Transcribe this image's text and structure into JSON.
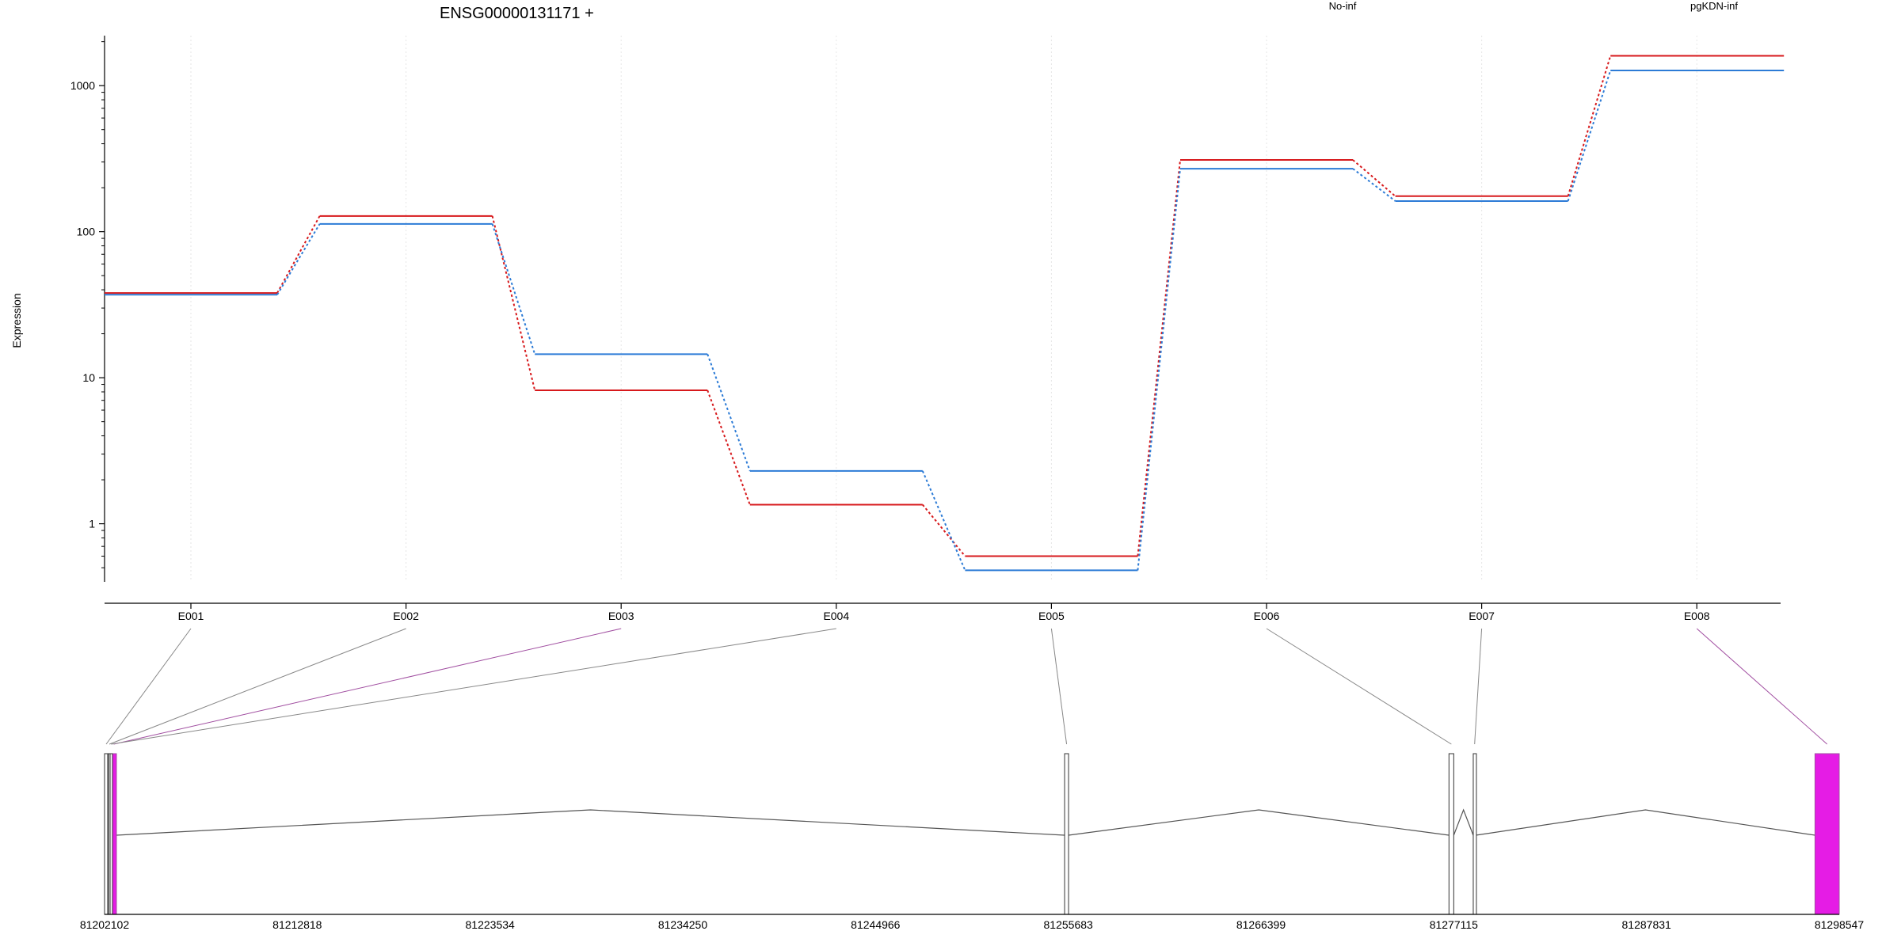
{
  "colors": {
    "series_no_inf": "#d7191c",
    "series_pgkdn_inf": "#2c7bd6",
    "highlight_exon": "#e51ce5",
    "highlight_line": "#a14fa1",
    "axis": "#000000",
    "grid": "#e6e6e6",
    "gene_line": "#555555",
    "connector": "#888888"
  },
  "chart_data": [
    {
      "type": "line",
      "title": "ENSG00000131171 +",
      "ylabel": "Expression",
      "xlabel": "",
      "y_scale": "log",
      "ylim": [
        0.4,
        2200
      ],
      "y_ticks": [
        {
          "value": 1,
          "label": "1"
        },
        {
          "value": 10,
          "label": "10"
        },
        {
          "value": 100,
          "label": "100"
        },
        {
          "value": 1000,
          "label": "1000"
        }
      ],
      "categories": [
        "E001",
        "E002",
        "E003",
        "E004",
        "E005",
        "E006",
        "E007",
        "E008"
      ],
      "grid": "vertical",
      "legend_position": "top",
      "series": [
        {
          "name": "No-inf",
          "color": "#d7191c",
          "values": [
            38,
            128,
            8.2,
            1.35,
            0.6,
            310,
            175,
            1600
          ]
        },
        {
          "name": "pgKDN-inf",
          "color": "#2c7bd6",
          "values": [
            37,
            113,
            14.5,
            2.3,
            0.48,
            270,
            162,
            1270
          ]
        }
      ]
    },
    {
      "type": "gene_model",
      "strand": "+",
      "xlim": [
        81202102,
        81298547
      ],
      "x_ticks": [
        "81202102",
        "81212818",
        "81223534",
        "81234250",
        "81244966",
        "81255683",
        "81266399",
        "81277115",
        "81287831",
        "81298547"
      ],
      "exons": [
        {
          "id": "E001",
          "start": 81202102,
          "end": 81202280,
          "highlight": false
        },
        {
          "id": "E002",
          "start": 81202300,
          "end": 81202440,
          "highlight": false
        },
        {
          "id": "E003",
          "start": 81202460,
          "end": 81202760,
          "highlight": true
        },
        {
          "id": "E004",
          "start": 81202420,
          "end": 81202520,
          "highlight": false
        },
        {
          "id": "E005",
          "start": 81255480,
          "end": 81255700,
          "highlight": false
        },
        {
          "id": "E006",
          "start": 81276850,
          "end": 81277115,
          "highlight": false
        },
        {
          "id": "E007",
          "start": 81278200,
          "end": 81278350,
          "highlight": false
        },
        {
          "id": "E008",
          "start": 81297200,
          "end": 81298547,
          "highlight": true
        }
      ]
    }
  ]
}
